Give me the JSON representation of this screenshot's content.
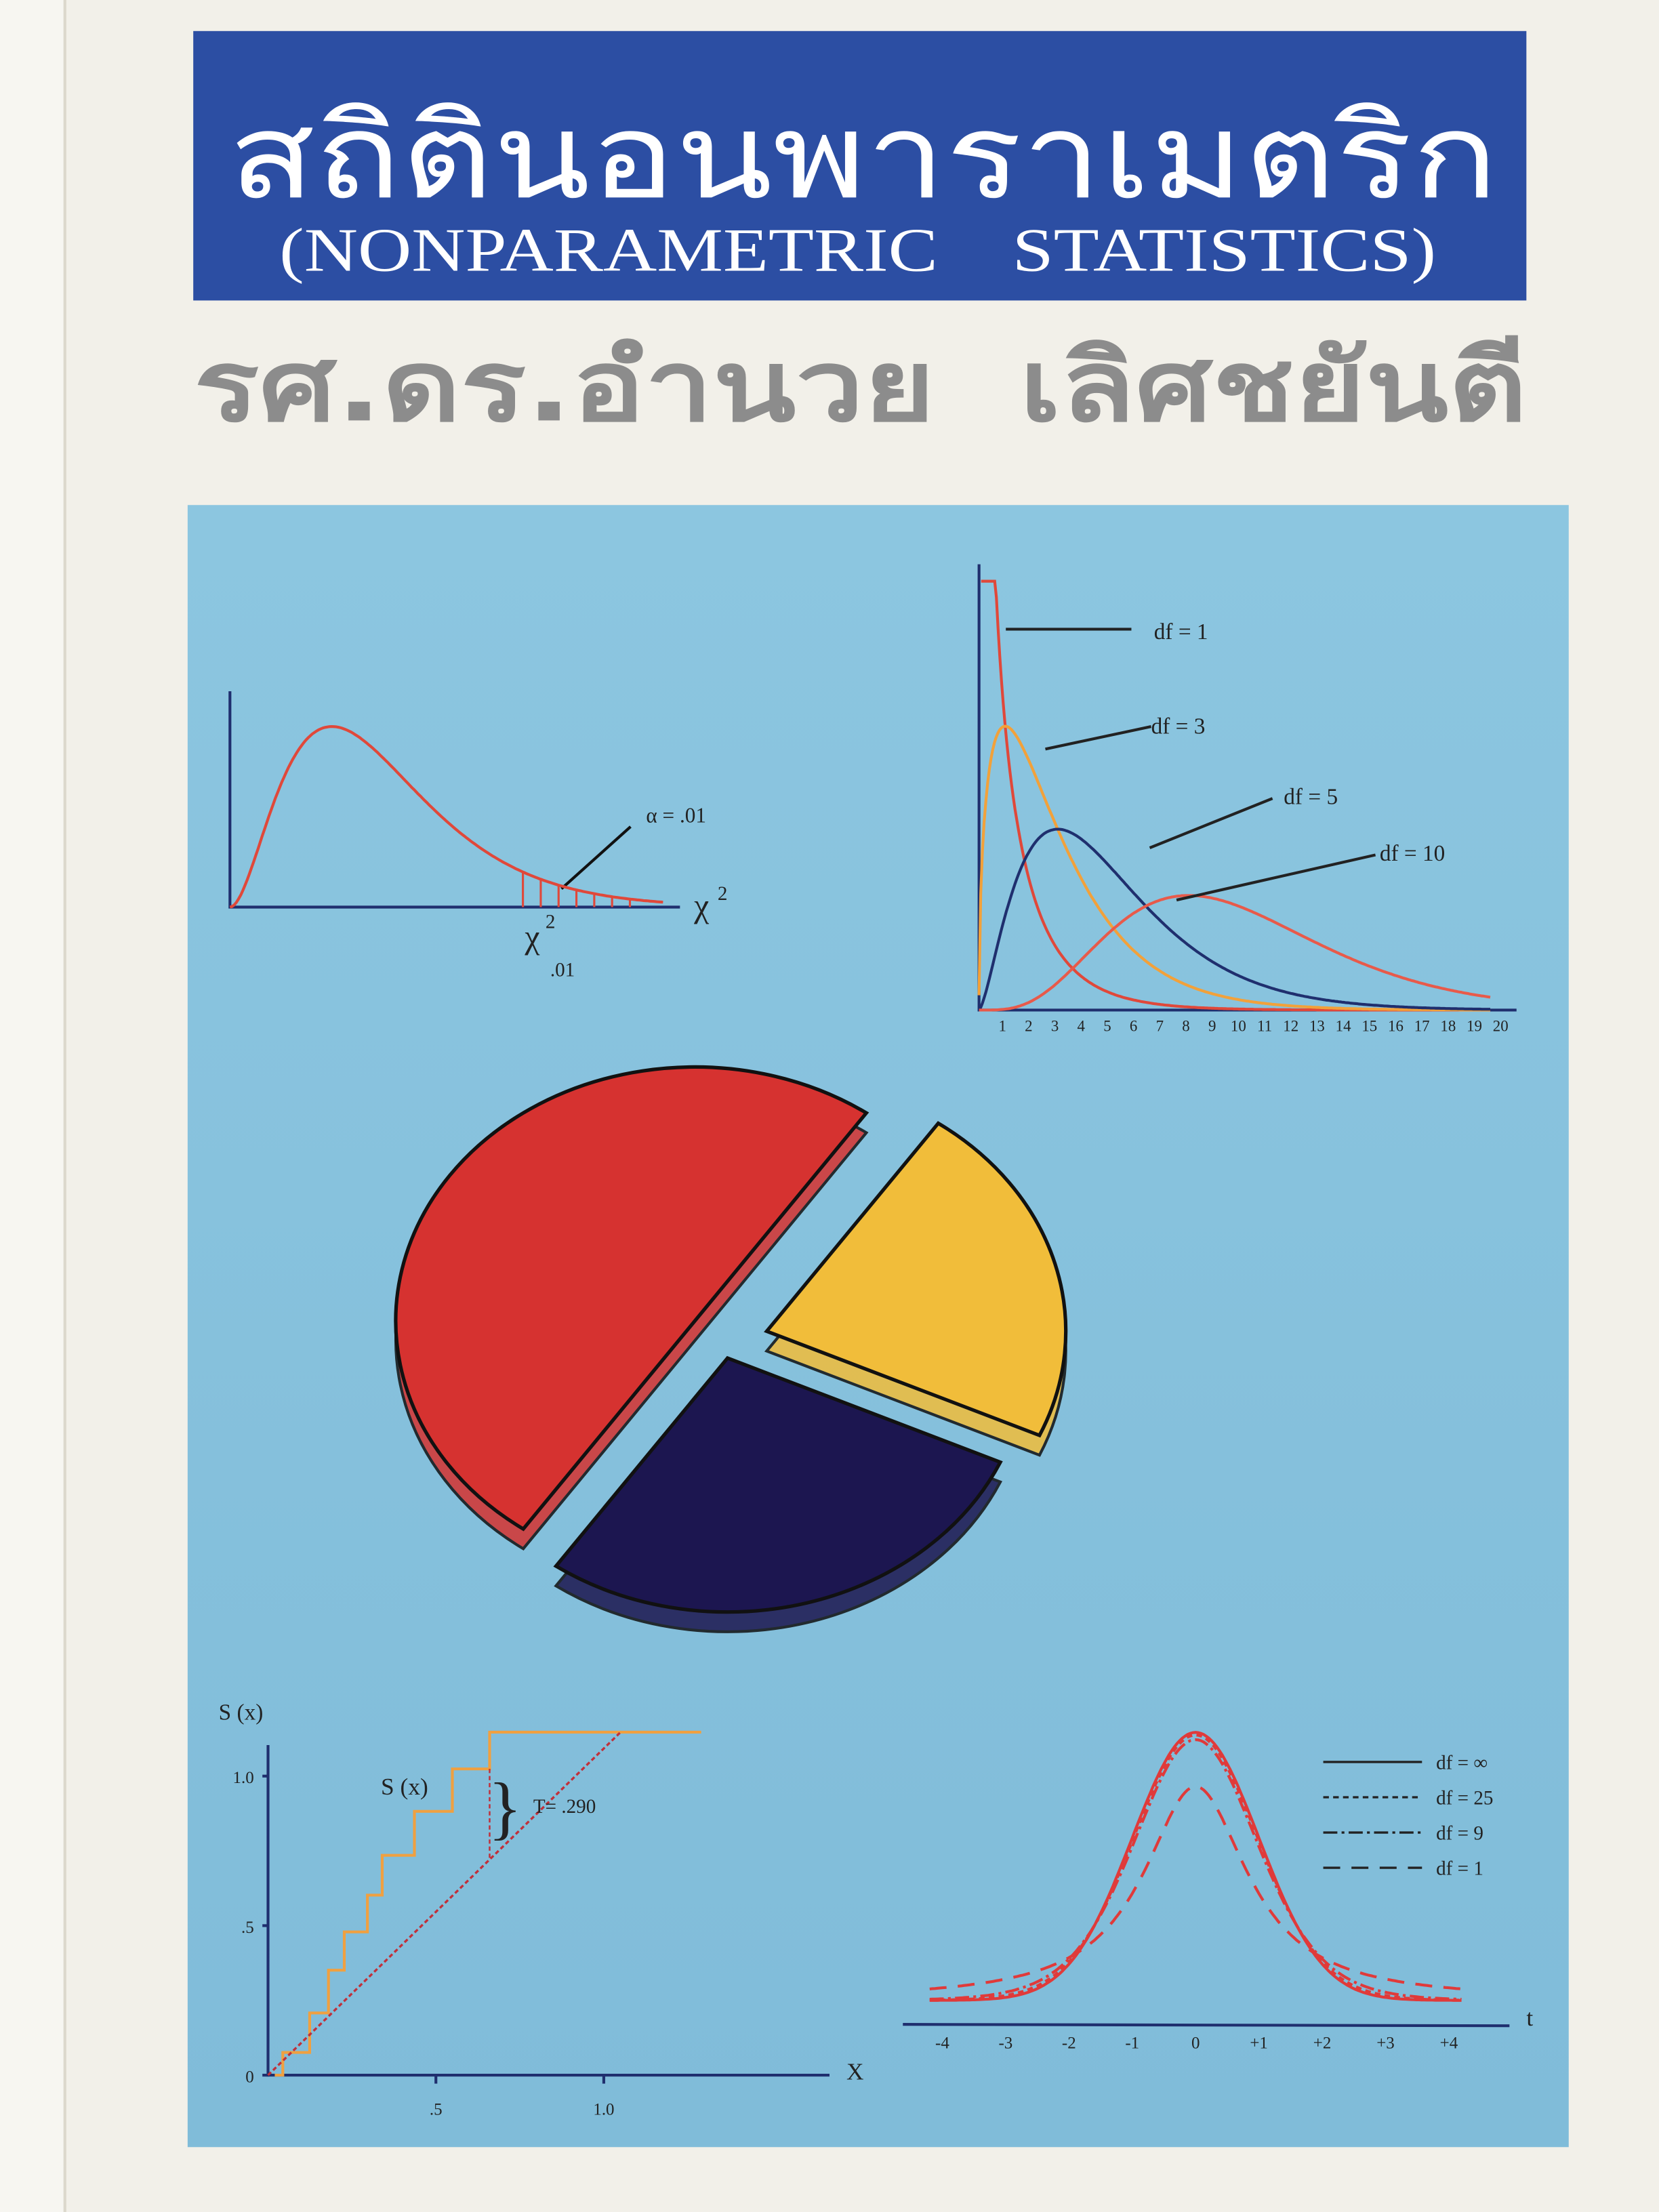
{
  "cover": {
    "title_thai": "สถิตินอนพาราเมตริก",
    "title_english": "(NONPARAMETRIC    STATISTICS)",
    "author": "รศ.ดร.อำนวย  เลิศชยันตี",
    "colors": {
      "title_band": "#2c4ea3",
      "panel": "#86c2de",
      "author": "#8c8c8c",
      "page": "#f2f0e9"
    }
  },
  "chart_data": [
    {
      "type": "line",
      "description_label": "chi-square density with shaded tail",
      "df": 6,
      "xlim": [
        0,
        17
      ],
      "shaded_from": 11.5,
      "annotation": "α = .01",
      "xlabel_symbol": "χ",
      "xlabel_sup": "2",
      "critical_symbol": "χ",
      "critical_sup": "2",
      "critical_sub": ".01",
      "color": "#e0483a"
    },
    {
      "type": "line",
      "x_ticks": [
        1,
        2,
        3,
        4,
        5,
        6,
        7,
        8,
        9,
        10,
        11,
        12,
        13,
        14,
        15,
        16,
        17,
        18,
        19,
        20
      ],
      "xlim": [
        0,
        20.5
      ],
      "ylim": [
        0,
        0.38
      ],
      "series": [
        {
          "name": "df = 1",
          "df": 1,
          "color": "#e0483a"
        },
        {
          "name": "df = 3",
          "df": 3,
          "color": "#f2a13a"
        },
        {
          "name": "df = 5",
          "df": 5,
          "color": "#1f2f6e"
        },
        {
          "name": "df = 10",
          "df": 10,
          "color": "#e85a4a"
        }
      ]
    },
    {
      "type": "pie",
      "slices": [
        {
          "value": 50,
          "color": "#d63230"
        },
        {
          "value": 22,
          "color": "#f1bd3a"
        },
        {
          "value": 28,
          "color": "#1c1650"
        }
      ]
    },
    {
      "type": "line",
      "ylabel": "S (x)",
      "xlabel": "X",
      "x_ticks": [
        ".5",
        "1.0"
      ],
      "y_ticks": [
        "0",
        ".5",
        "1.0"
      ],
      "xlim": [
        0,
        1.75
      ],
      "ylim": [
        0,
        1.2
      ],
      "step_x": [
        0.044,
        0.124,
        0.18,
        0.227,
        0.296,
        0.34,
        0.436,
        0.549,
        0.66
      ],
      "step_y": [
        0.076,
        0.208,
        0.351,
        0.479,
        0.602,
        0.735,
        0.882,
        1.024,
        1.147
      ],
      "step_end_x": 1.29,
      "reference_line": {
        "x": [
          0,
          1.05
        ],
        "y": [
          0,
          1.147
        ]
      },
      "series_label": "S (x)",
      "annotation": "T= .290",
      "step_color": "#f0a040",
      "reference_color": "#c0303a"
    },
    {
      "type": "line",
      "xlabel": "t",
      "x_ticks": [
        "-4",
        "-3",
        "-2",
        "-1",
        "0",
        "+1",
        "+2",
        "+3",
        "+4"
      ],
      "xlim": [
        -4.4,
        4.4
      ],
      "series": [
        {
          "name": "df = ∞",
          "df": null,
          "dash": "solid"
        },
        {
          "name": "df = 25",
          "df": 25,
          "dash": "dotted"
        },
        {
          "name": "df = 9",
          "df": 9,
          "dash": "dash-dot"
        },
        {
          "name": "df = 1",
          "df": 1,
          "dash": "long-dash"
        }
      ],
      "color": "#e03a3a",
      "legend": "top-right"
    }
  ]
}
